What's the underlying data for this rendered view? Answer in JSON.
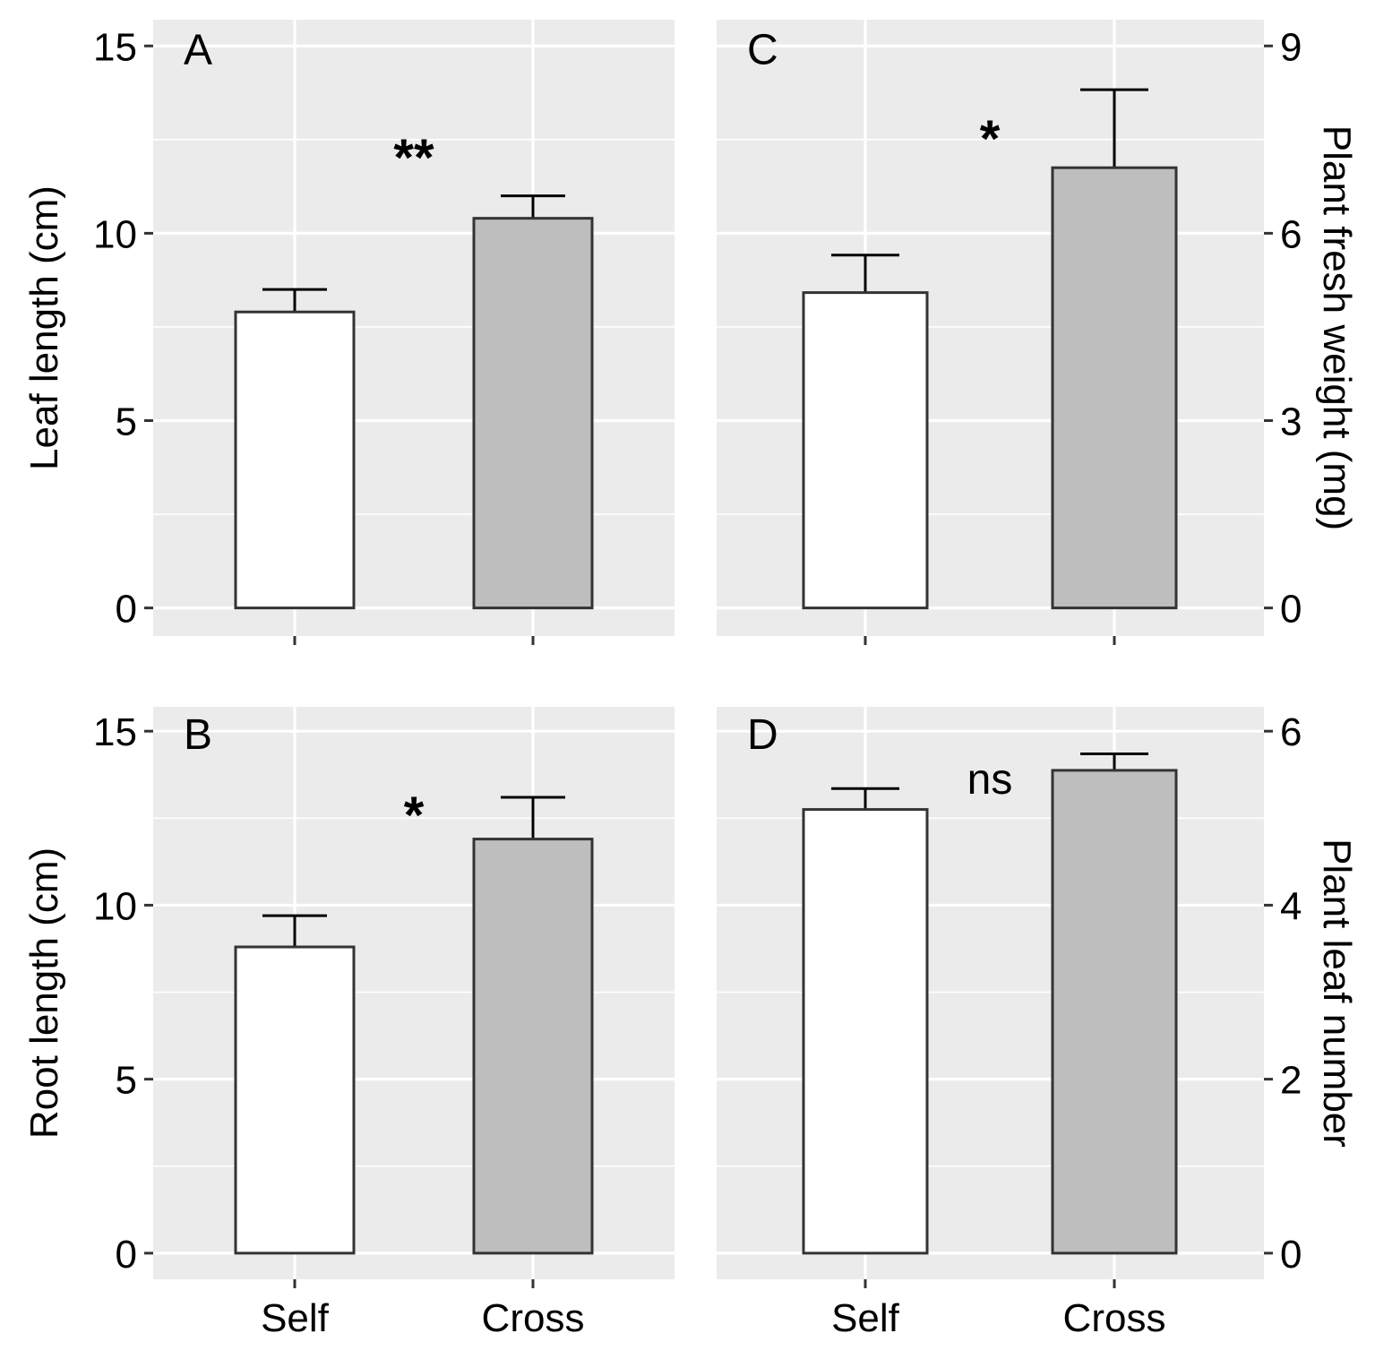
{
  "chart_data": [
    {
      "panel": "A",
      "type": "bar",
      "categories": [
        "Self",
        "Cross"
      ],
      "values": [
        7.9,
        10.4
      ],
      "errors": [
        0.6,
        0.6
      ],
      "colors": [
        "#ffffff",
        "#bebebe"
      ],
      "ylabel": "Leaf length (cm)",
      "ylim": [
        -0.75,
        15.7
      ],
      "yticks": [
        0,
        5,
        10,
        15
      ],
      "ytick_labels": [
        "0",
        "5",
        "10",
        "15"
      ],
      "y_axis_side": "left",
      "significance": "**",
      "show_x_labels": false,
      "grid": true
    },
    {
      "panel": "B",
      "type": "bar",
      "categories": [
        "Self",
        "Cross"
      ],
      "values": [
        8.8,
        11.9
      ],
      "errors": [
        0.9,
        1.2
      ],
      "colors": [
        "#ffffff",
        "#bebebe"
      ],
      "ylabel": "Root length (cm)",
      "ylim": [
        -0.75,
        15.7
      ],
      "yticks": [
        0,
        5,
        10,
        15
      ],
      "ytick_labels": [
        "0",
        "5",
        "10",
        "15"
      ],
      "y_axis_side": "left",
      "significance": "*",
      "show_x_labels": true,
      "grid": true
    },
    {
      "panel": "C",
      "type": "bar",
      "categories": [
        "Self",
        "Cross"
      ],
      "values": [
        5.05,
        7.05
      ],
      "errors": [
        0.6,
        1.25
      ],
      "colors": [
        "#ffffff",
        "#bebebe"
      ],
      "ylabel": "Plant fresh weight (mg)",
      "ylim": [
        -0.45,
        9.42
      ],
      "yticks": [
        0,
        3,
        6,
        9
      ],
      "ytick_labels": [
        "0",
        "3",
        "6",
        "9"
      ],
      "y_axis_side": "right",
      "significance": "*",
      "show_x_labels": false,
      "grid": true
    },
    {
      "panel": "D",
      "type": "bar",
      "categories": [
        "Self",
        "Cross"
      ],
      "values": [
        5.1,
        5.55
      ],
      "errors": [
        0.24,
        0.19
      ],
      "colors": [
        "#ffffff",
        "#bebebe"
      ],
      "ylabel": "Plant leaf number",
      "ylim": [
        -0.3,
        6.28
      ],
      "yticks": [
        0,
        2,
        4,
        6
      ],
      "ytick_labels": [
        "0",
        "2",
        "4",
        "6"
      ],
      "y_axis_side": "right",
      "significance": "ns",
      "show_x_labels": true,
      "grid": true
    }
  ]
}
